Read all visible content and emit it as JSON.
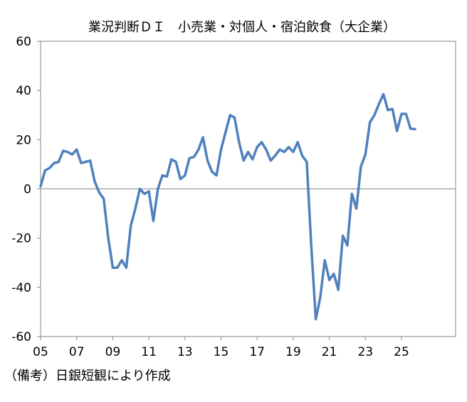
{
  "chart_data": {
    "type": "line",
    "title": "業況判断ＤＩ　小売業・対個人・宿泊飲食（大企業）",
    "note": "（備考）日銀短観により作成",
    "xlabel": "",
    "ylabel": "",
    "x_ticks": [
      "05",
      "07",
      "09",
      "11",
      "13",
      "15",
      "17",
      "19",
      "21",
      "23",
      "25"
    ],
    "x_tick_years": [
      2005,
      2007,
      2009,
      2011,
      2013,
      2015,
      2017,
      2019,
      2021,
      2023,
      2025
    ],
    "xlim": [
      2005,
      2028
    ],
    "ylim": [
      -60,
      60
    ],
    "y_ticks": [
      60,
      40,
      20,
      0,
      -20,
      -40,
      -60
    ],
    "grid": false,
    "zero_line": true,
    "series_color": "#4f81bd",
    "axis_color": "#868686",
    "series": [
      {
        "name": "",
        "x": [
          2005.0,
          2005.25,
          2005.5,
          2005.75,
          2006.0,
          2006.25,
          2006.5,
          2006.75,
          2007.0,
          2007.25,
          2007.5,
          2007.75,
          2008.0,
          2008.25,
          2008.5,
          2008.75,
          2009.0,
          2009.25,
          2009.5,
          2009.75,
          2010.0,
          2010.25,
          2010.5,
          2010.75,
          2011.0,
          2011.25,
          2011.5,
          2011.75,
          2012.0,
          2012.25,
          2012.5,
          2012.75,
          2013.0,
          2013.25,
          2013.5,
          2013.75,
          2014.0,
          2014.25,
          2014.5,
          2014.75,
          2015.0,
          2015.25,
          2015.5,
          2015.75,
          2016.0,
          2016.25,
          2016.5,
          2016.75,
          2017.0,
          2017.25,
          2017.5,
          2017.75,
          2018.0,
          2018.25,
          2018.5,
          2018.75,
          2019.0,
          2019.25,
          2019.5,
          2019.75,
          2020.0,
          2020.25,
          2020.5,
          2020.75,
          2021.0,
          2021.25,
          2021.5,
          2021.75,
          2022.0,
          2022.25,
          2022.5,
          2022.75,
          2023.0,
          2023.25,
          2023.5,
          2023.75,
          2024.0,
          2024.25,
          2024.5,
          2024.75,
          2025.0,
          2025.25,
          2025.5,
          2025.75
        ],
        "y": [
          1,
          7.5,
          8.5,
          10.5,
          11,
          15.5,
          15,
          14,
          16,
          10.5,
          11,
          11.5,
          3,
          -1.5,
          -4,
          -20,
          -32,
          -32,
          -29,
          -32,
          -15,
          -8,
          0,
          -2,
          -1,
          -13,
          0,
          5.5,
          5,
          12,
          11,
          4,
          5.5,
          12.5,
          13,
          16,
          21,
          11.5,
          7,
          5.5,
          16,
          23,
          30,
          29,
          19,
          11.5,
          15,
          12,
          17,
          19,
          16,
          11.5,
          13.5,
          16,
          15,
          17,
          15,
          19,
          13.5,
          11,
          -23,
          -53,
          -44,
          -29,
          -37,
          -34.5,
          -41,
          -19,
          -23,
          -2,
          -8,
          9,
          14,
          27,
          30,
          34.5,
          38.5,
          32,
          32.5,
          23.5,
          30.5,
          30.5,
          24.5,
          24.3
        ]
      }
    ]
  }
}
